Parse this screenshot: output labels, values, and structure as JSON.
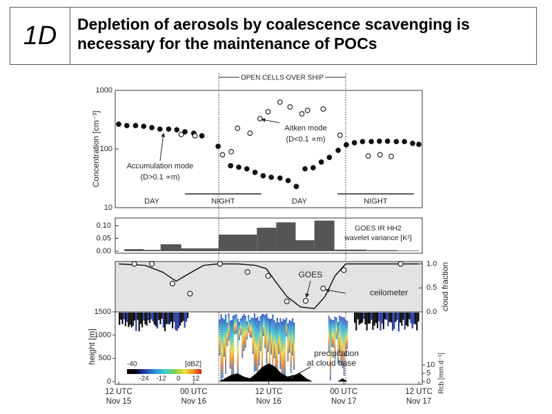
{
  "header": {
    "label": "1D",
    "title": "Depletion of aerosols by coalescence scavenging is necessary for the maintenance of POCs"
  },
  "chart_data": [
    {
      "type": "scatter",
      "ylabel": "Concentration [cm⁻³]",
      "log_y": true,
      "ylim": [
        10,
        1000
      ],
      "yticks": [
        10,
        100,
        1000
      ],
      "xlim": [
        0,
        48
      ],
      "open_cells": {
        "label": "OPEN CELLS OVER SHIP",
        "start": 16,
        "end": 36.3
      },
      "periods": [
        {
          "label": "DAY",
          "start": 0,
          "end": 10.6,
          "underline": false
        },
        {
          "label": "NIGHT",
          "start": 10.6,
          "end": 22.8,
          "underline": true
        },
        {
          "label": "DAY",
          "start": 22.8,
          "end": 35,
          "underline": false
        },
        {
          "label": "NIGHT",
          "start": 35,
          "end": 47.2,
          "underline": true
        }
      ],
      "series": [
        {
          "name": "Accumulation mode",
          "note": "(D>0.1 ∝m)",
          "marker": "filled",
          "color": "#111111",
          "x": [
            0,
            1.3,
            2.7,
            4,
            5.3,
            6.6,
            8,
            9.3,
            10.6,
            12,
            13.3,
            15.9,
            17.9,
            19.2,
            20.5,
            21.8,
            23.1,
            24.4,
            25.8,
            27.1,
            28.4,
            29.8,
            31.1,
            32.4,
            33.7,
            35.1,
            36.4,
            37.7,
            39,
            40.4,
            41.7,
            43,
            44.4,
            45.7,
            47,
            48
          ],
          "values": [
            265,
            251,
            251,
            244,
            232,
            219,
            219,
            213,
            197,
            186,
            168,
            111,
            52,
            49,
            46,
            40,
            35,
            33,
            32,
            29,
            23,
            46,
            48,
            60,
            72,
            95,
            118,
            128,
            134,
            134,
            136,
            136,
            134,
            134,
            125,
            120
          ]
        },
        {
          "name": "Aitken mode",
          "note": "(D<0.1 ∝m)",
          "marker": "open",
          "color": "#111111",
          "x": [
            10,
            12.2,
            16.6,
            18,
            19,
            21,
            22.6,
            23.9,
            25.8,
            27.4,
            29.3,
            30.2,
            32.7,
            35.4,
            39.9,
            41.8,
            43.6
          ],
          "values": [
            177,
            168,
            80,
            90,
            226,
            186,
            330,
            432,
            631,
            522,
            398,
            455,
            481,
            172,
            76,
            80,
            75
          ]
        }
      ]
    },
    {
      "type": "histogram",
      "ylim": [
        0,
        0.13
      ],
      "yticks": [
        {
          "value": 0,
          "label": "0.00"
        },
        {
          "value": 0.05,
          "label": "0.05"
        },
        {
          "value": 0.1,
          "label": "0.10"
        }
      ],
      "xlim": [
        0,
        48
      ],
      "annotation": [
        "GOES IR HH2",
        "wavelet variance [K²]"
      ],
      "color": "#555555",
      "bins": [
        0.9,
        4,
        6.7,
        10,
        16,
        22.1,
        25.2,
        28.3,
        31.3,
        34.5,
        39.6,
        44.6,
        48
      ],
      "values": [
        0.008,
        0.005,
        0.027,
        0.011,
        0.065,
        0.092,
        0.113,
        0.043,
        0.12,
        0.006,
        0.004,
        0.002
      ]
    },
    {
      "type": "line",
      "y2label": "cloud fraction",
      "ylim": [
        0,
        1.05
      ],
      "yticks": [
        {
          "value": 0,
          "label": "0.0"
        },
        {
          "value": 0.5,
          "label": "0.5"
        },
        {
          "value": 1,
          "label": "1.0"
        }
      ],
      "xlim": [
        0,
        48
      ],
      "series": [
        {
          "name": "GOES",
          "style": "line",
          "color": "#111111",
          "x": [
            0,
            4.2,
            7,
            9.2,
            11.4,
            13.6,
            15.9,
            19.1,
            21.9,
            23.6,
            25.2,
            26.9,
            29.1,
            31.3,
            33,
            34.6,
            36.3,
            39.6,
            48
          ],
          "values": [
            1.0,
            0.97,
            0.83,
            0.64,
            0.81,
            0.97,
            1.0,
            1.0,
            0.97,
            0.9,
            0.61,
            0.32,
            0.1,
            0.07,
            0.32,
            0.75,
            1.0,
            1.0,
            1.0
          ]
        },
        {
          "name": "ceilometer",
          "style": "marker",
          "color": "#111111",
          "x": [
            2.5,
            5.3,
            8.6,
            11.4,
            16.2,
            20.6,
            23.9,
            26.9,
            29.9,
            32.7,
            36,
            45.1
          ],
          "values": [
            1.0,
            1.0,
            0.59,
            0.38,
            1.0,
            0.83,
            0.75,
            0.22,
            0.23,
            0.49,
            0.87,
            1.0
          ]
        }
      ]
    },
    {
      "type": "area",
      "ylabel": "height [m]",
      "ylim": [
        0,
        1500
      ],
      "yticks": [
        0,
        500,
        1000,
        1500
      ],
      "y2label": "Rcb [mm d⁻¹]",
      "y2lim": [
        0,
        10
      ],
      "y2ticks": [
        0,
        5,
        10
      ],
      "xlim": [
        0,
        48
      ],
      "xticks": [
        {
          "value": 0,
          "label": "12 UTC\nNov 15"
        },
        {
          "value": 12,
          "label": "00 UTC\nNov 16"
        },
        {
          "value": 24,
          "label": "12 UTC\nNov 16"
        },
        {
          "value": 36,
          "label": "00 UTC\nNov 17"
        },
        {
          "value": 48,
          "label": "12 UTC\nNov 17"
        }
      ],
      "colorbar": {
        "label": "[dBZ]",
        "under": -40,
        "lim": [
          -30,
          16
        ],
        "ticks": [
          -24,
          -12,
          0,
          12
        ]
      },
      "series": [
        {
          "name": "precipitation",
          "note": "at cloud base",
          "axis": "y2",
          "color": "#000000",
          "x": [
            16,
            17,
            18,
            19,
            20,
            21,
            22,
            23,
            24,
            25,
            26,
            27,
            28,
            29,
            30,
            31,
            35,
            35.8,
            36.6
          ],
          "values": [
            0,
            2,
            4,
            5,
            3,
            2,
            5,
            9,
            11,
            9,
            5,
            3,
            4,
            5,
            2,
            0,
            0,
            2,
            0
          ]
        }
      ]
    }
  ]
}
